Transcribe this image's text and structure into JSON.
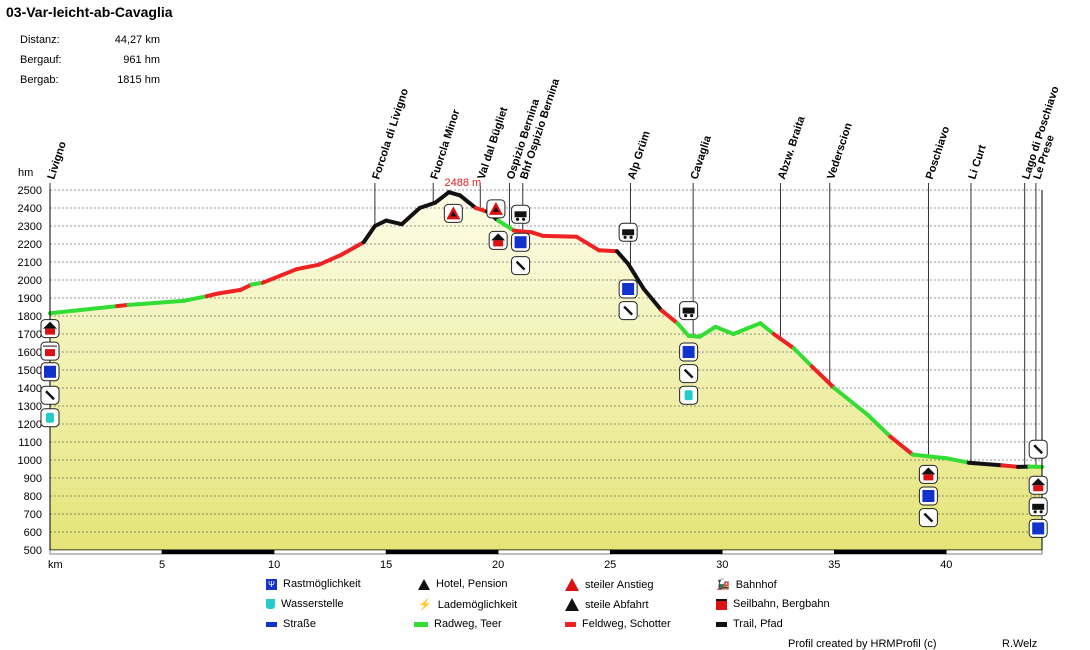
{
  "title": "03-Var-leicht-ab-Cavaglia",
  "stats": [
    {
      "label": "Distanz:",
      "value": "44,27 km"
    },
    {
      "label": "Bergauf:",
      "value": "961 hm"
    },
    {
      "label": "Bergab:",
      "value": "1815 hm"
    }
  ],
  "chart_data": {
    "type": "area",
    "title": "03-Var-leicht-ab-Cavaglia",
    "xlabel": "km",
    "ylabel": "hm",
    "xlim": [
      0,
      44.27
    ],
    "ylim": [
      500,
      2500
    ],
    "x_ticks": [
      5,
      10,
      15,
      20,
      25,
      30,
      35,
      40
    ],
    "y_ticks": [
      500,
      600,
      700,
      800,
      900,
      1000,
      1100,
      1200,
      1300,
      1400,
      1500,
      1600,
      1700,
      1800,
      1900,
      2000,
      2100,
      2200,
      2300,
      2400,
      2500
    ],
    "max_label": "2488 m",
    "max_point": {
      "km": 17.8,
      "hm": 2488
    },
    "profile": [
      {
        "km": 0,
        "hm": 1815,
        "surface": "green"
      },
      {
        "km": 3,
        "hm": 1855,
        "surface": "green"
      },
      {
        "km": 3.5,
        "hm": 1862,
        "surface": "red"
      },
      {
        "km": 4,
        "hm": 1866,
        "surface": "green"
      },
      {
        "km": 6,
        "hm": 1885,
        "surface": "green"
      },
      {
        "km": 7,
        "hm": 1910,
        "surface": "green"
      },
      {
        "km": 7.5,
        "hm": 1925,
        "surface": "red"
      },
      {
        "km": 8.5,
        "hm": 1945,
        "surface": "red"
      },
      {
        "km": 9,
        "hm": 1975,
        "surface": "red"
      },
      {
        "km": 9.5,
        "hm": 1985,
        "surface": "green"
      },
      {
        "km": 10,
        "hm": 2010,
        "surface": "red"
      },
      {
        "km": 11,
        "hm": 2060,
        "surface": "red"
      },
      {
        "km": 12,
        "hm": 2085,
        "surface": "red"
      },
      {
        "km": 13,
        "hm": 2140,
        "surface": "red"
      },
      {
        "km": 14,
        "hm": 2210,
        "surface": "red"
      },
      {
        "km": 14.5,
        "hm": 2300,
        "surface": "black"
      },
      {
        "km": 15,
        "hm": 2330,
        "surface": "black"
      },
      {
        "km": 15.7,
        "hm": 2310,
        "surface": "black"
      },
      {
        "km": 16.5,
        "hm": 2400,
        "surface": "black"
      },
      {
        "km": 17.2,
        "hm": 2430,
        "surface": "black"
      },
      {
        "km": 17.8,
        "hm": 2488,
        "surface": "black"
      },
      {
        "km": 18.3,
        "hm": 2470,
        "surface": "black"
      },
      {
        "km": 19,
        "hm": 2400,
        "surface": "black"
      },
      {
        "km": 19.5,
        "hm": 2380,
        "surface": "red"
      },
      {
        "km": 20,
        "hm": 2330,
        "surface": "black"
      },
      {
        "km": 20.7,
        "hm": 2275,
        "surface": "green"
      },
      {
        "km": 21,
        "hm": 2270,
        "surface": "red"
      },
      {
        "km": 21.5,
        "hm": 2265,
        "surface": "red"
      },
      {
        "km": 22,
        "hm": 2245,
        "surface": "red"
      },
      {
        "km": 23.5,
        "hm": 2240,
        "surface": "red"
      },
      {
        "km": 24.5,
        "hm": 2165,
        "surface": "red"
      },
      {
        "km": 25.3,
        "hm": 2160,
        "surface": "red"
      },
      {
        "km": 25.8,
        "hm": 2090,
        "surface": "black"
      },
      {
        "km": 26.5,
        "hm": 1950,
        "surface": "black"
      },
      {
        "km": 27.3,
        "hm": 1830,
        "surface": "black"
      },
      {
        "km": 28,
        "hm": 1760,
        "surface": "red"
      },
      {
        "km": 28.5,
        "hm": 1690,
        "surface": "green"
      },
      {
        "km": 29,
        "hm": 1685,
        "surface": "green"
      },
      {
        "km": 29.7,
        "hm": 1740,
        "surface": "green"
      },
      {
        "km": 30.5,
        "hm": 1700,
        "surface": "green"
      },
      {
        "km": 31.7,
        "hm": 1760,
        "surface": "green"
      },
      {
        "km": 32.3,
        "hm": 1700,
        "surface": "green"
      },
      {
        "km": 33.2,
        "hm": 1620,
        "surface": "red"
      },
      {
        "km": 34,
        "hm": 1520,
        "surface": "green"
      },
      {
        "km": 35,
        "hm": 1400,
        "surface": "red"
      },
      {
        "km": 36.5,
        "hm": 1250,
        "surface": "green"
      },
      {
        "km": 37.5,
        "hm": 1130,
        "surface": "green"
      },
      {
        "km": 38.5,
        "hm": 1030,
        "surface": "red"
      },
      {
        "km": 40,
        "hm": 1010,
        "surface": "green"
      },
      {
        "km": 41,
        "hm": 985,
        "surface": "green"
      },
      {
        "km": 42.5,
        "hm": 970,
        "surface": "black"
      },
      {
        "km": 43.2,
        "hm": 962,
        "surface": "red"
      },
      {
        "km": 43.7,
        "hm": 963,
        "surface": "black"
      },
      {
        "km": 44.27,
        "hm": 962,
        "surface": "green"
      }
    ],
    "waypoints": [
      {
        "name": "Livigno",
        "km": 0
      },
      {
        "name": "Forcola di Livigno",
        "km": 14.5
      },
      {
        "name": "Fuorcla Minor",
        "km": 17.1
      },
      {
        "name": "Val dal Bügliet",
        "km": 19.2
      },
      {
        "name": "Ospizio Bernina",
        "km": 20.5
      },
      {
        "name": "Bhf Ospizio Bernina",
        "km": 21.1
      },
      {
        "name": "Alp Grüm",
        "km": 25.9
      },
      {
        "name": "Cavaglia",
        "km": 28.7
      },
      {
        "name": "Abzw. Braita",
        "km": 32.6
      },
      {
        "name": "Vederscion",
        "km": 34.8
      },
      {
        "name": "Poschiavo",
        "km": 39.2
      },
      {
        "name": "Li Curt",
        "km": 41.1
      },
      {
        "name": "Lago di Poschiavo",
        "km": 43.5
      },
      {
        "name": "Le Prese",
        "km": 44.0
      }
    ]
  },
  "legend": [
    {
      "icon": "rest",
      "label": "Rastmöglichkeit"
    },
    {
      "icon": "hotel",
      "label": "Hotel, Pension"
    },
    {
      "icon": "steep-up",
      "label": "steiler Anstieg"
    },
    {
      "icon": "train",
      "label": "Bahnhof"
    },
    {
      "icon": "water",
      "label": "Wasserstelle"
    },
    {
      "icon": "charging",
      "label": "Lademöglichkeit"
    },
    {
      "icon": "steep-down",
      "label": "steile Abfahrt"
    },
    {
      "icon": "cable-car",
      "label": "Seilbahn, Bergbahn"
    },
    {
      "icon": "surface-road",
      "label": "Straße"
    },
    {
      "icon": "surface-green",
      "label": "Radweg, Teer"
    },
    {
      "icon": "surface-red",
      "label": "Feldweg, Schotter"
    },
    {
      "icon": "surface-black",
      "label": "Trail, Pfad"
    }
  ],
  "footer": {
    "credit": "Profil created by HRMProfil (c)",
    "author": "R.Welz"
  },
  "colors": {
    "green": "#33dd33",
    "red": "#ee2222",
    "black": "#111111",
    "blue": "#1133cc",
    "fill_top": "#fdfde6",
    "fill_bottom": "#e6e67a"
  }
}
